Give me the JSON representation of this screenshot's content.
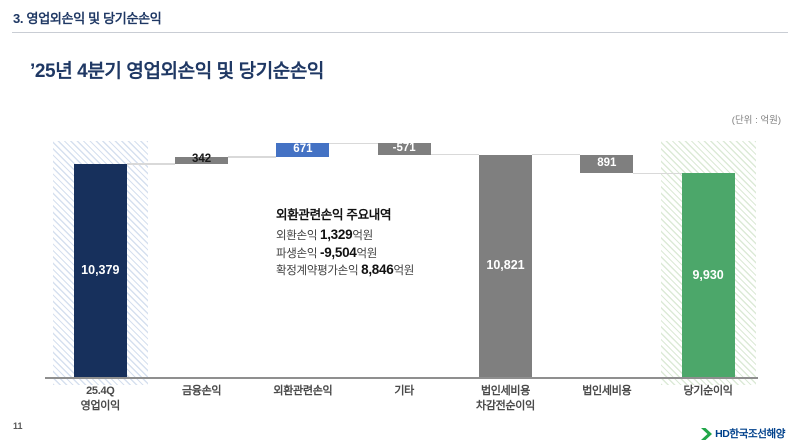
{
  "header": {
    "section_title": "3. 영업외손익 및 당기순손익"
  },
  "slide": {
    "title": "’25년 4분기 영업외손익 및 당기순손익",
    "unit_label": "(단위 : 억원)"
  },
  "colors": {
    "title_navy": "#1f3864",
    "bar_navy": "#17305c",
    "bar_blue": "#4472c4",
    "bar_gray": "#7f7f7f",
    "bar_green": "#4ca76a",
    "hatch_blue_stripe": "#d6e0ef",
    "hatch_green_stripe": "#dcead7",
    "connector": "#d9d9d9",
    "axis": "#8f8f8f",
    "logo_green": "#21a649",
    "logo_blue": "#00418c"
  },
  "chart_data": {
    "type": "waterfall",
    "title": "’25년 4분기 영업외손익 및 당기순손익",
    "unit": "억원",
    "ylim": [
      0,
      11392
    ],
    "grid": false,
    "categories": [
      [
        "25.4Q",
        "영업이익"
      ],
      [
        "금융손익"
      ],
      [
        "외환관련손익"
      ],
      [
        "기타"
      ],
      [
        "법인세비용",
        "차감전순이익"
      ],
      [
        "법인세비용"
      ],
      [
        "당기순이익"
      ]
    ],
    "bars": [
      {
        "name": "25.4Q 영업이익",
        "kind": "total",
        "value": 10379,
        "display": "10,379",
        "color": "#17305c",
        "label_color": "#ffffff",
        "hatch": true,
        "hatch_stripe": "#d6e0ef"
      },
      {
        "name": "금융손익",
        "kind": "delta",
        "value": 342,
        "display": "342",
        "color": "#7f7f7f",
        "label_color": "#1a1a1a",
        "hatch": false
      },
      {
        "name": "외환관련손익",
        "kind": "delta",
        "value": 671,
        "display": "671",
        "color": "#4472c4",
        "label_color": "#ffffff",
        "hatch": false
      },
      {
        "name": "기타",
        "kind": "delta",
        "value": -571,
        "display": "-571",
        "color": "#7f7f7f",
        "label_color": "#ffffff",
        "hatch": false
      },
      {
        "name": "법인세비용 차감전순이익",
        "kind": "total",
        "value": 10821,
        "display": "10,821",
        "color": "#7f7f7f",
        "label_color": "#ffffff",
        "hatch": false
      },
      {
        "name": "법인세비용",
        "kind": "delta",
        "value": -891,
        "display": "891",
        "color": "#7f7f7f",
        "label_color": "#ffffff",
        "hatch": false
      },
      {
        "name": "당기순이익",
        "kind": "total",
        "value": 9930,
        "display": "9,930",
        "color": "#4ca76a",
        "label_color": "#ffffff",
        "hatch": true,
        "hatch_stripe": "#dcead7"
      }
    ]
  },
  "annotation": {
    "title": "외환관련손익 주요내역",
    "lines": [
      {
        "label": "외환손익 ",
        "value": "1,329",
        "suffix": "억원"
      },
      {
        "label": "파생손익 ",
        "value": "-9,504",
        "suffix": "억원"
      },
      {
        "label": "확정계약평가손익 ",
        "value": "8,846",
        "suffix": "억원"
      }
    ]
  },
  "footer": {
    "page_number": "11",
    "logo_text": "HD한국조선해양"
  }
}
